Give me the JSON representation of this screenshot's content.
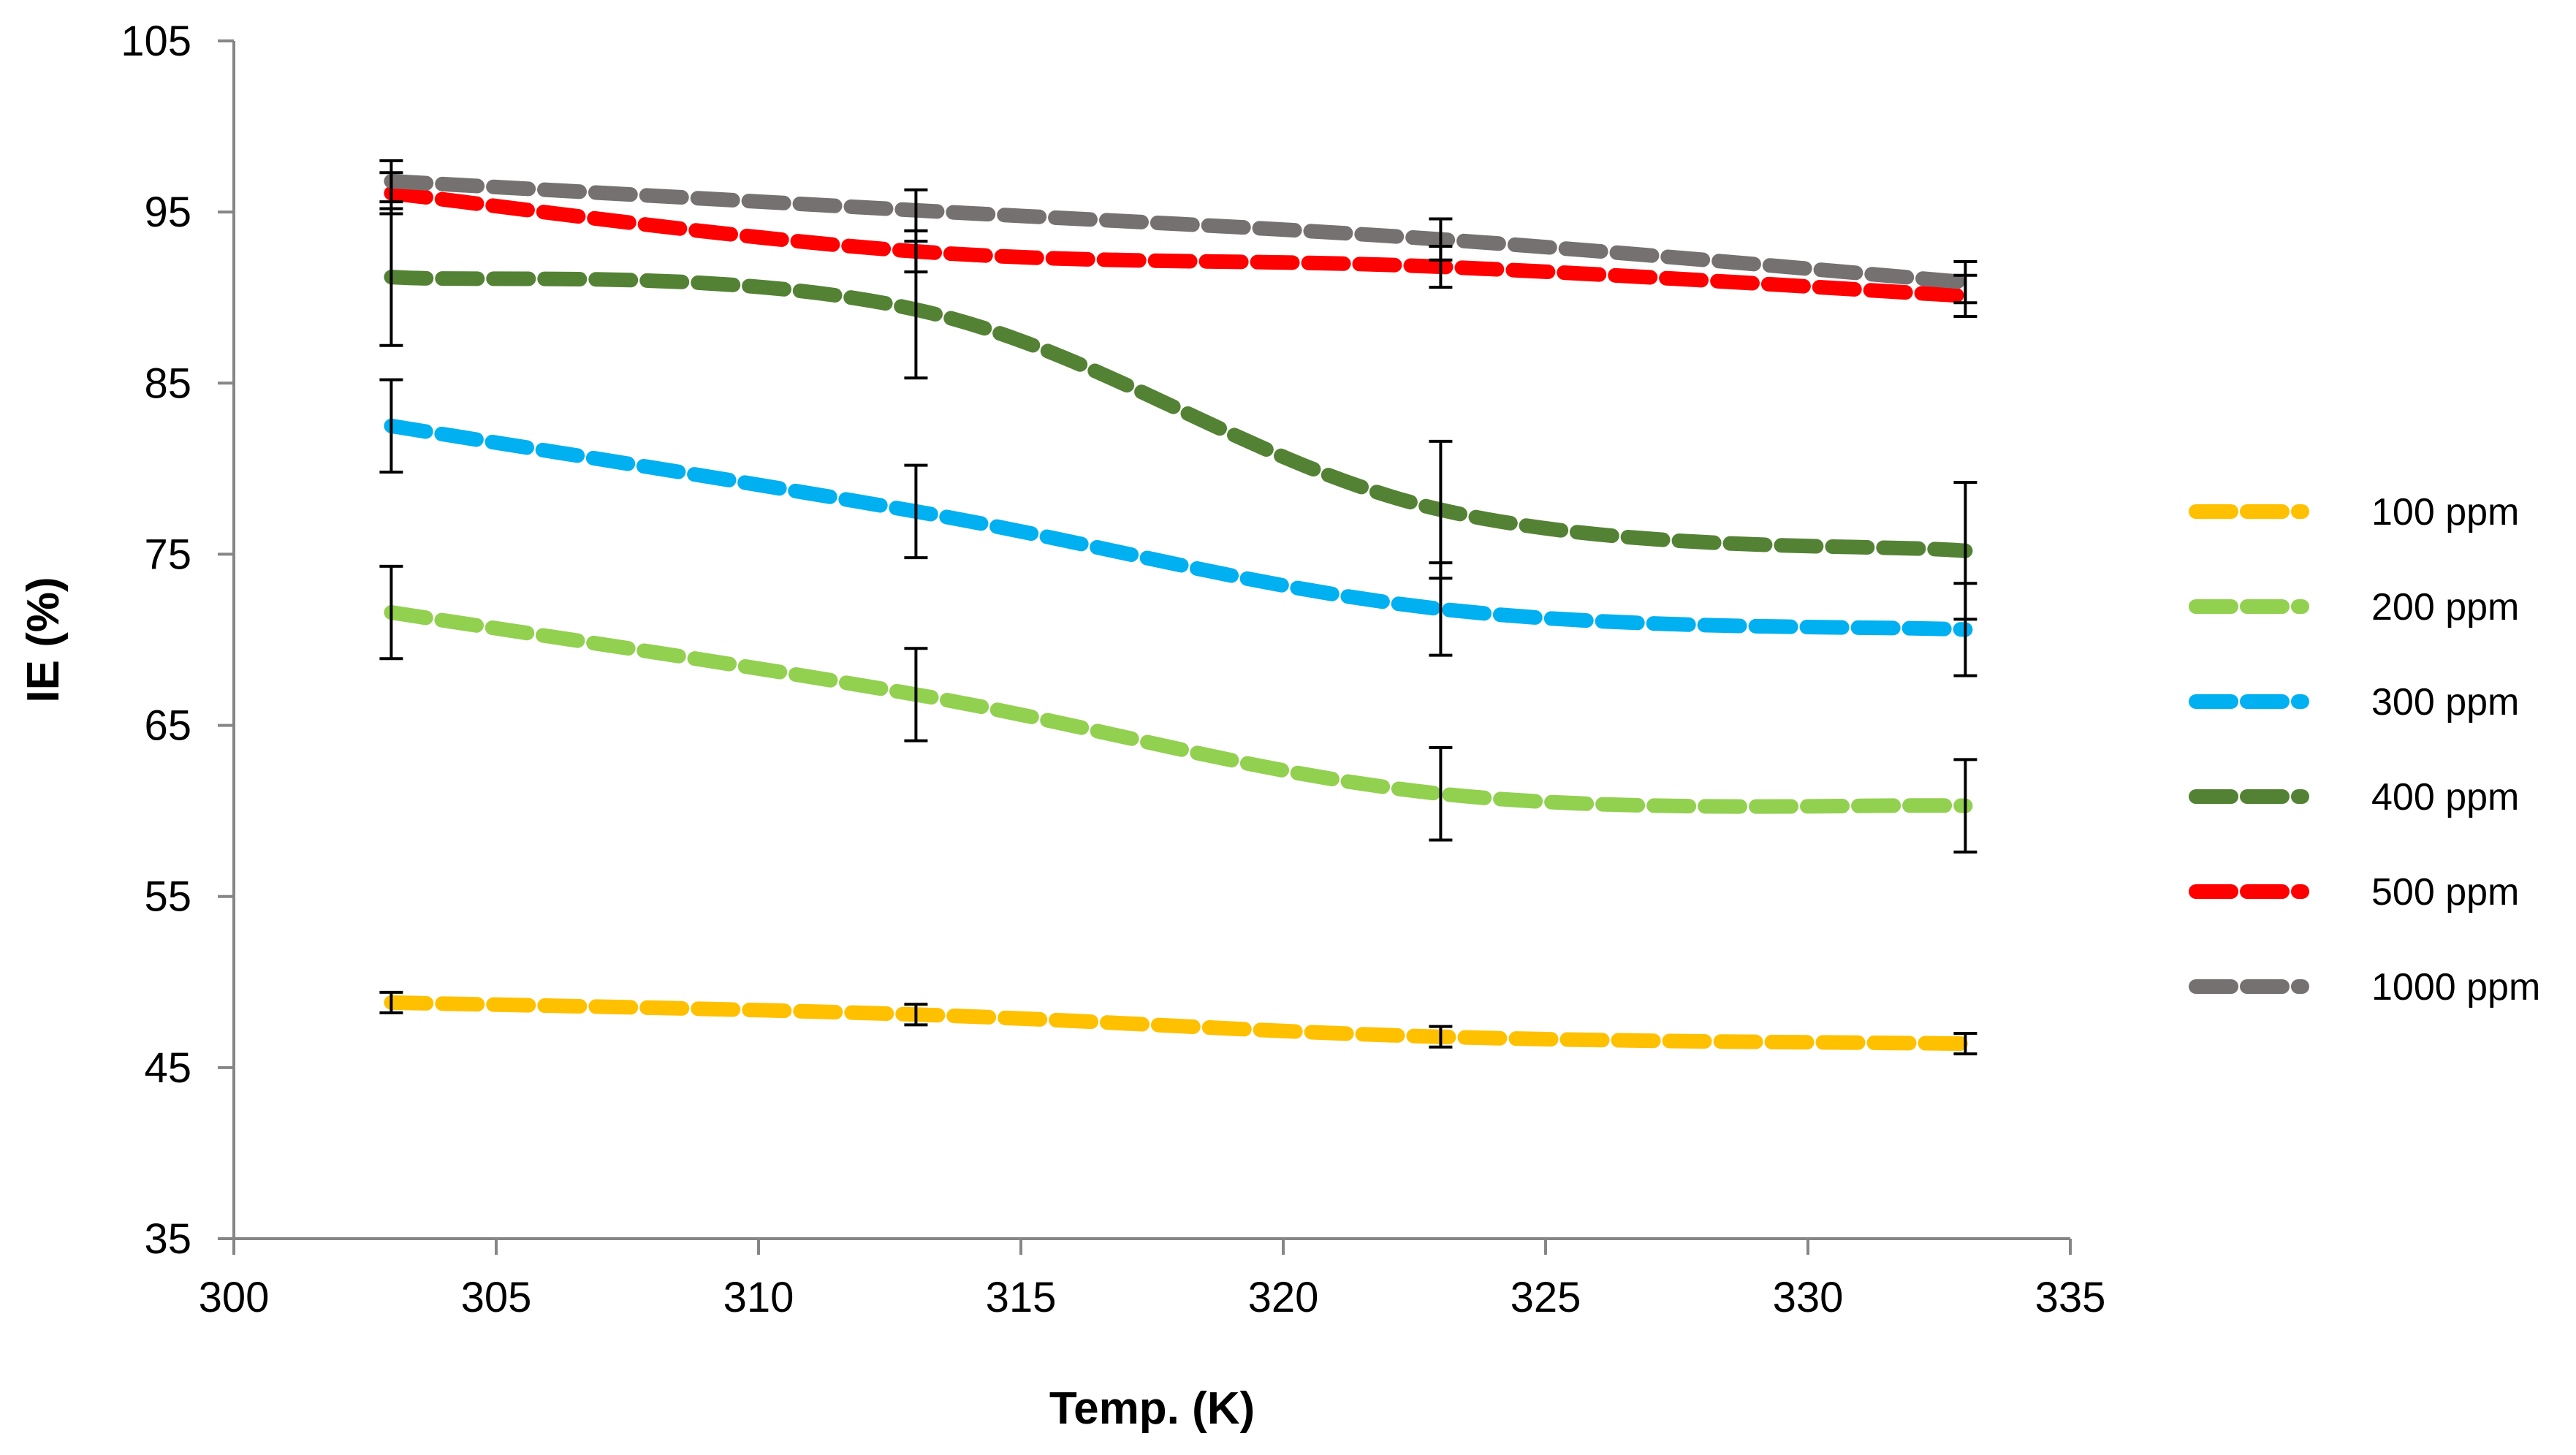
{
  "chart_data": {
    "type": "line",
    "title": "",
    "xlabel": "Temp. (K)",
    "ylabel": "IE (%)",
    "xlim": [
      300,
      335
    ],
    "ylim": [
      35,
      105
    ],
    "xticks": [
      "300",
      "305",
      "310",
      "315",
      "320",
      "325",
      "330",
      "335"
    ],
    "yticks": [
      "35",
      "45",
      "55",
      "65",
      "75",
      "85",
      "95",
      "105"
    ],
    "x": [
      303,
      313,
      323,
      333
    ],
    "grid": false,
    "legend_position": "right",
    "series": [
      {
        "name": "100 ppm",
        "color": "#FFC000",
        "values": [
          48.8,
          48.1,
          46.8,
          46.4
        ],
        "errors": [
          0.6,
          0.6,
          0.6,
          0.6
        ]
      },
      {
        "name": "200 ppm",
        "color": "#92D050",
        "values": [
          71.6,
          66.8,
          61.0,
          60.3
        ],
        "errors": [
          2.7,
          2.7,
          2.7,
          2.7
        ]
      },
      {
        "name": "300 ppm",
        "color": "#00B0F0",
        "values": [
          82.5,
          77.5,
          71.8,
          70.6
        ],
        "errors": [
          2.7,
          2.7,
          2.7,
          2.7
        ]
      },
      {
        "name": "400 ppm",
        "color": "#548235",
        "values": [
          91.2,
          89.3,
          77.6,
          75.2
        ],
        "errors": [
          4.0,
          4.0,
          4.0,
          4.0
        ]
      },
      {
        "name": "500 ppm",
        "color": "#FF0000",
        "values": [
          96.1,
          92.7,
          91.8,
          90.1
        ],
        "errors": [
          1.2,
          1.2,
          1.2,
          1.2
        ]
      },
      {
        "name": "1000 ppm",
        "color": "#767171",
        "values": [
          96.8,
          95.1,
          93.4,
          90.9
        ],
        "errors": [
          1.2,
          1.2,
          1.2,
          1.2
        ]
      }
    ]
  }
}
